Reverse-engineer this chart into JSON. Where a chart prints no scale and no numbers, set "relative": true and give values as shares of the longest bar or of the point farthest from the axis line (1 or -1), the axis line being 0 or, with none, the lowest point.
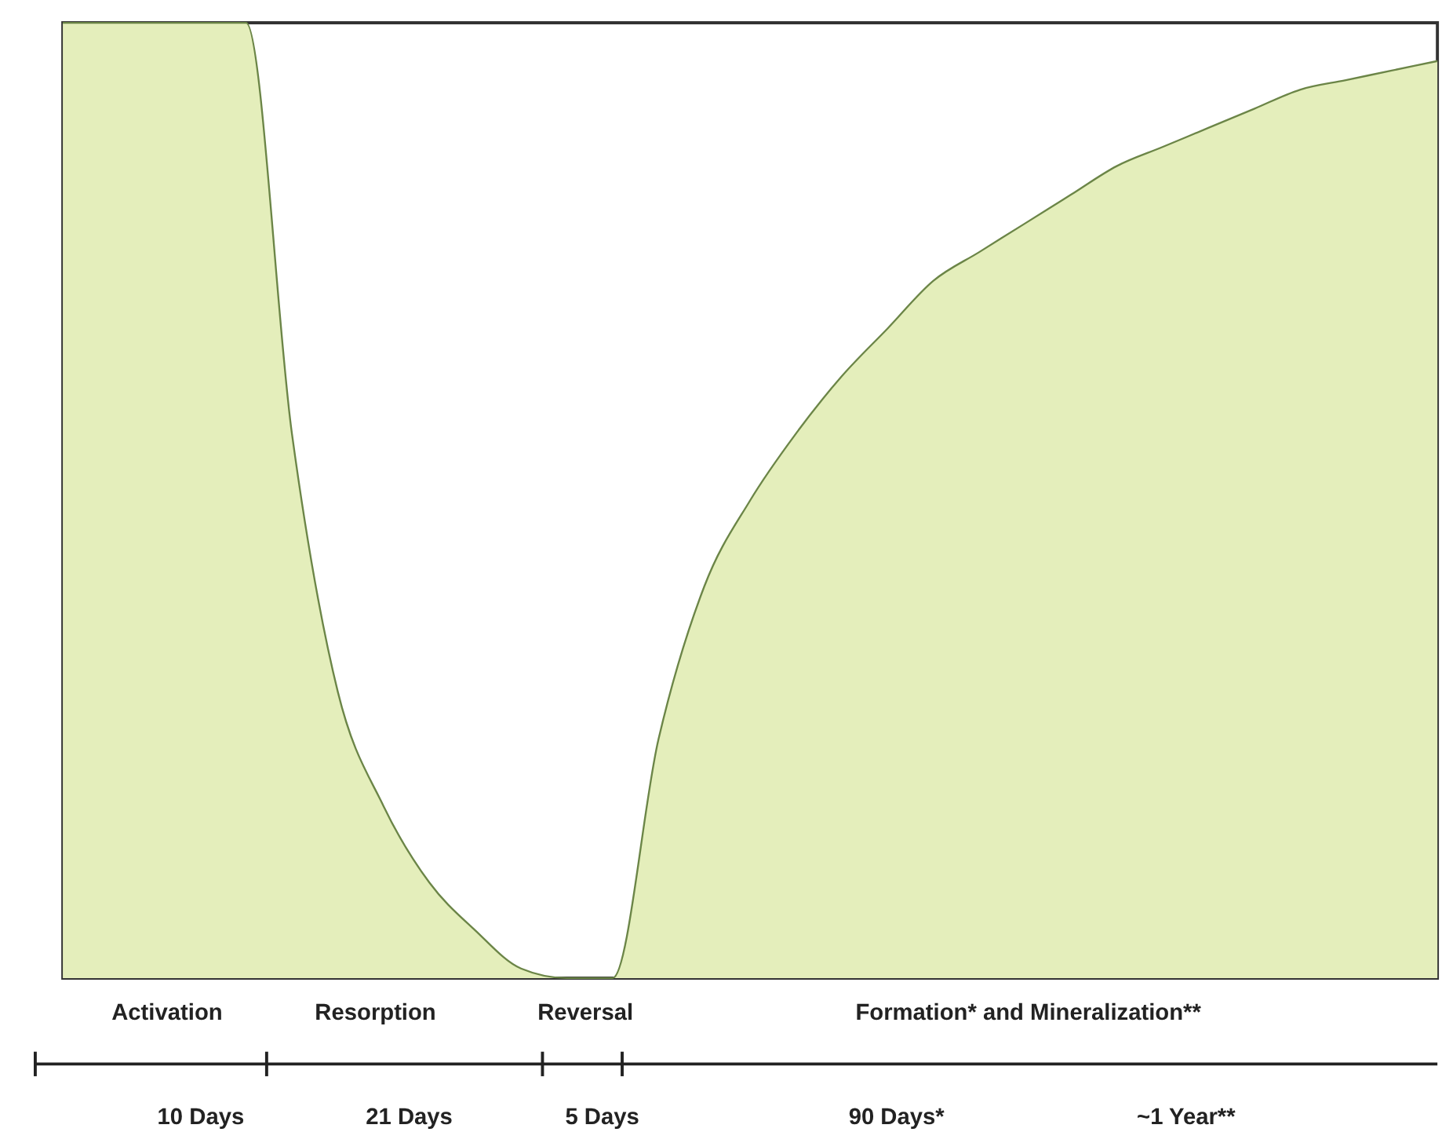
{
  "chart_data": {
    "type": "area",
    "relative": true,
    "categories": [
      null,
      null,
      null,
      null,
      null,
      null,
      null,
      null,
      null,
      null,
      null,
      null,
      null,
      null,
      null,
      null,
      null,
      null,
      null,
      null,
      null,
      null,
      null,
      null,
      null,
      null,
      null,
      null,
      null,
      null,
      null
    ],
    "series": [
      {
        "color": "#e4eebb",
        "values": [
          1,
          1,
          1,
          1,
          1,
          0.57,
          0.3,
          0.18,
          0.1,
          0.05,
          0.01,
          0,
          0,
          0.25,
          0.41,
          0.5,
          0.57,
          0.63,
          0.68,
          0.73,
          0.76,
          0.79,
          0.82,
          0.85,
          0.87,
          0.89,
          0.91,
          0.93,
          0.94,
          0.95,
          0.96
        ]
      }
    ],
    "annotations": [
      "Activation",
      "Resorption",
      "Reversal",
      "Formation* and Mineralization**",
      "10 Days",
      "21 Days",
      "5 Days",
      "90 Days*",
      "~1 Year**"
    ]
  }
}
